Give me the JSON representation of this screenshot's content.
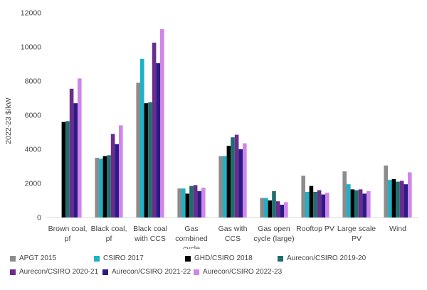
{
  "chart_data": {
    "type": "bar",
    "title": "",
    "xlabel": "",
    "ylabel": "2022-23 $/kW",
    "ylim": [
      0,
      12000
    ],
    "yticks": [
      0,
      2000,
      4000,
      6000,
      8000,
      10000,
      12000
    ],
    "ytick_labels": [
      "0",
      "2000",
      "4000",
      "6000",
      "8000",
      "10000",
      "12000"
    ],
    "grid": false,
    "legend_position": "bottom",
    "categories": [
      [
        "Brown coal,",
        "pf"
      ],
      [
        "Black coal,",
        "pf"
      ],
      [
        "Black coal",
        "with CCS"
      ],
      [
        "Gas",
        "combined",
        "cycle"
      ],
      [
        "Gas with",
        "CCS"
      ],
      [
        "Gas open",
        "cycle (large)"
      ],
      [
        "Rooftop PV"
      ],
      [
        "Large scale",
        "PV"
      ],
      [
        "Wind"
      ]
    ],
    "series": [
      {
        "name": "APGT 2015",
        "color": "#8c8c8c",
        "values": [
          null,
          3500,
          7900,
          1700,
          3600,
          1150,
          2450,
          2700,
          3050
        ]
      },
      {
        "name": "CSIRO 2017",
        "color": "#1fb1c6",
        "values": [
          null,
          3450,
          9300,
          1700,
          3600,
          1150,
          1500,
          1950,
          2200
        ]
      },
      {
        "name": "GHD/CSIRO 2018",
        "color": "#000000",
        "values": [
          5600,
          3600,
          6700,
          1400,
          4200,
          1000,
          1850,
          1650,
          2250
        ]
      },
      {
        "name": "Aurecon/CSIRO 2019-20",
        "color": "#1f6e6e",
        "values": [
          5650,
          3650,
          6750,
          1850,
          4700,
          1550,
          1500,
          1600,
          2100
        ]
      },
      {
        "name": "Aurecon/CSIRO 2020-21",
        "color": "#6a2d8c",
        "values": [
          7550,
          4900,
          10250,
          1900,
          4850,
          950,
          1600,
          1650,
          2150
        ]
      },
      {
        "name": "Aurecon/CSIRO 2021-22",
        "color": "#2c1b87",
        "values": [
          6700,
          4300,
          9050,
          1550,
          4000,
          750,
          1350,
          1400,
          1950
        ]
      },
      {
        "name": "Aurecon/CSIRO 2022-23",
        "color": "#cf86e8",
        "values": [
          8150,
          5400,
          11050,
          1750,
          4350,
          900,
          1450,
          1550,
          2650
        ]
      }
    ]
  }
}
